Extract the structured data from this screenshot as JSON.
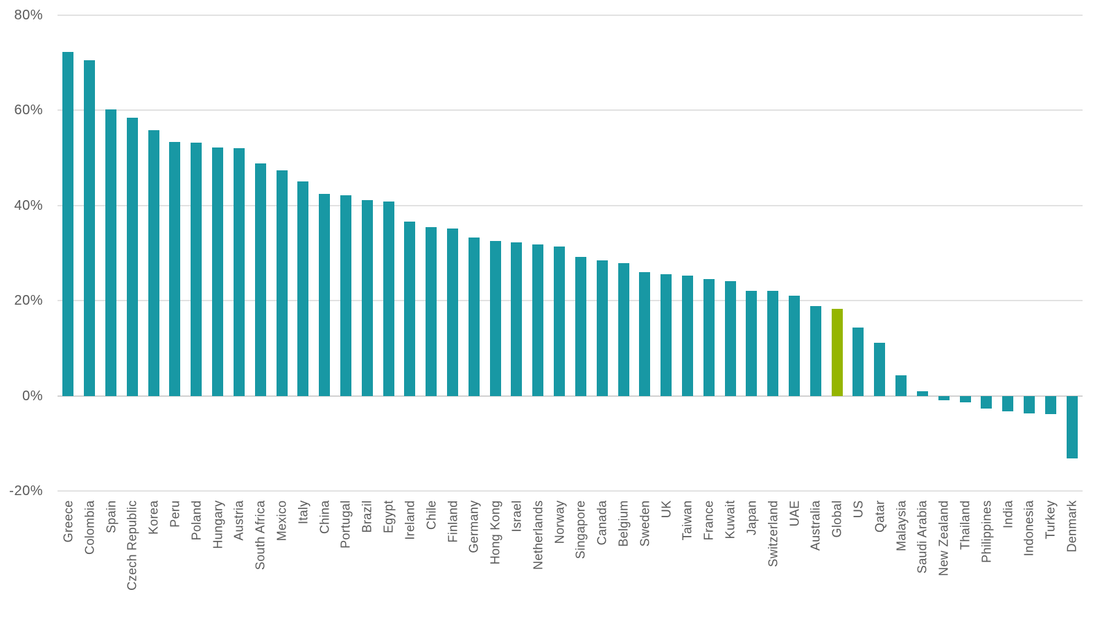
{
  "chart_data": {
    "type": "bar",
    "title": "",
    "xlabel": "",
    "ylabel": "",
    "unit": "%",
    "categories": [
      "Greece",
      "Colombia",
      "Spain",
      "Czech Republic",
      "Korea",
      "Peru",
      "Poland",
      "Hungary",
      "Austria",
      "South Africa",
      "Mexico",
      "Italy",
      "China",
      "Portugal",
      "Brazil",
      "Egypt",
      "Ireland",
      "Chile",
      "Finland",
      "Germany",
      "Hong Kong",
      "Israel",
      "Netherlands",
      "Norway",
      "Singapore",
      "Canada",
      "Belgium",
      "Sweden",
      "UK",
      "Taiwan",
      "France",
      "Kuwait",
      "Japan",
      "Switzerland",
      "UAE",
      "Australia",
      "Global",
      "US",
      "Qatar",
      "Malaysia",
      "Saudi Arabia",
      "New Zealand",
      "Thailand",
      "Philippines",
      "India",
      "Indonesia",
      "Turkey",
      "Denmark"
    ],
    "values": [
      72.3,
      70.5,
      60.2,
      58.4,
      55.9,
      53.4,
      53.2,
      52.2,
      52.1,
      48.9,
      47.4,
      45.0,
      42.4,
      42.2,
      41.2,
      40.9,
      36.6,
      35.4,
      35.2,
      33.3,
      32.6,
      32.2,
      31.8,
      31.4,
      29.2,
      28.4,
      27.9,
      26.0,
      25.5,
      25.2,
      24.6,
      24.1,
      22.1,
      22.0,
      21.0,
      18.9,
      18.3,
      14.4,
      11.2,
      4.3,
      1.0,
      -0.9,
      -1.3,
      -2.7,
      -3.2,
      -3.7,
      -3.8,
      -13.2
    ],
    "highlight_category": "Global",
    "bar_color": "#1898A4",
    "highlight_color": "#95B500",
    "label_color": "#595959",
    "gridline_color": "#E2E2E2",
    "zero_line_color": "#D2D2D2",
    "background_color": "#FFFFFF",
    "ylim": [
      -20,
      80
    ],
    "yticks": [
      80,
      60,
      40,
      20,
      0,
      -20
    ],
    "ytick_labels": [
      "80%",
      "60%",
      "40%",
      "20%",
      "0%",
      "-20%"
    ],
    "grid": "horizontal",
    "legend": "none",
    "x_label_rotation": -90
  }
}
